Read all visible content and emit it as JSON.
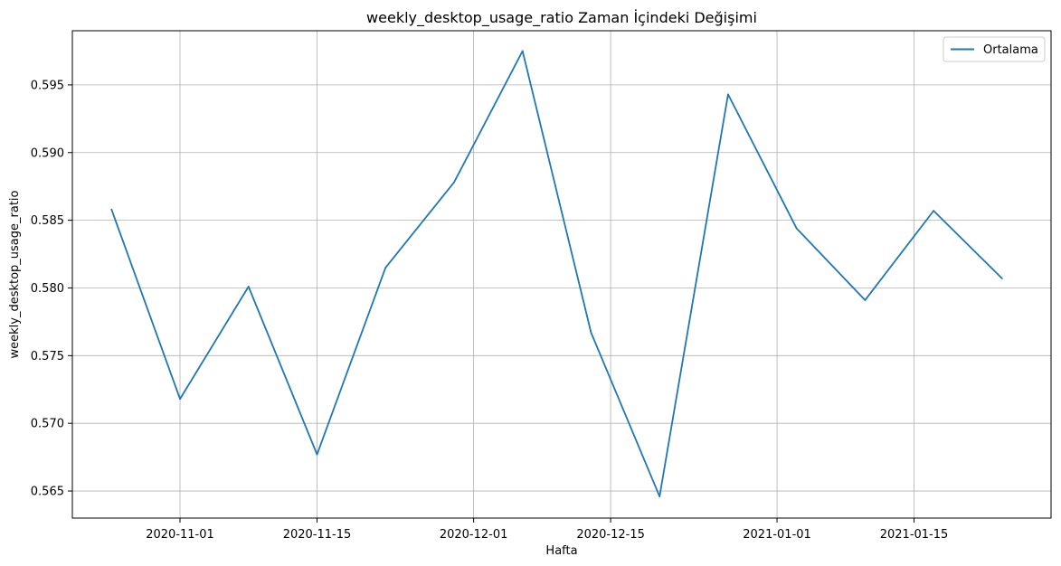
{
  "chart_data": {
    "type": "line",
    "title": "weekly_desktop_usage_ratio Zaman İçindeki Değişimi",
    "xlabel": "Hafta",
    "ylabel": "weekly_desktop_usage_ratio",
    "x_ticks": [
      "2020-11-01",
      "2020-11-15",
      "2020-12-01",
      "2020-12-15",
      "2021-01-01",
      "2021-01-15"
    ],
    "y_ticks": [
      "0.565",
      "0.570",
      "0.575",
      "0.580",
      "0.585",
      "0.590",
      "0.595"
    ],
    "xlim": [
      "2020-10-21",
      "2021-01-29"
    ],
    "ylim": [
      0.563,
      0.599
    ],
    "grid": true,
    "legend_position": "top-right",
    "series": [
      {
        "name": "Ortalama",
        "color": "#1f77b4",
        "x": [
          "2020-10-25",
          "2020-11-01",
          "2020-11-08",
          "2020-11-15",
          "2020-11-22",
          "2020-11-29",
          "2020-12-06",
          "2020-12-13",
          "2020-12-20",
          "2020-12-27",
          "2021-01-03",
          "2021-01-10",
          "2021-01-17",
          "2021-01-24"
        ],
        "y": [
          0.5858,
          0.5718,
          0.5801,
          0.5677,
          0.5815,
          0.5878,
          0.5975,
          0.5767,
          0.5646,
          0.5943,
          0.5844,
          0.5791,
          0.5857,
          0.5807
        ]
      }
    ]
  }
}
